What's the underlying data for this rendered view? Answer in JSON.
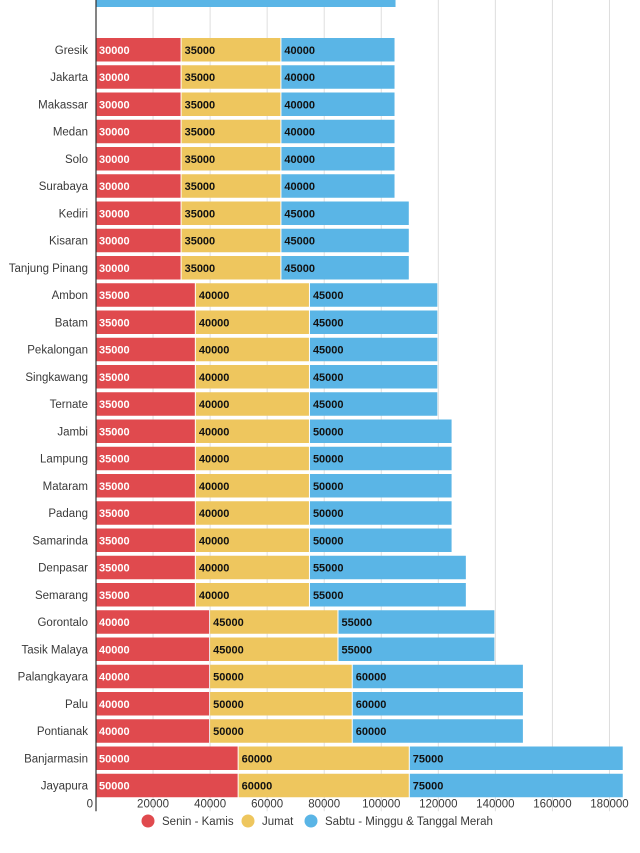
{
  "chart_data": {
    "type": "stacked-bar-horizontal",
    "title": "",
    "xlabel": "",
    "ylabel": "",
    "xlim": [
      0,
      190000
    ],
    "xticks": [
      0,
      20000,
      40000,
      60000,
      80000,
      100000,
      120000,
      140000,
      160000,
      180000
    ],
    "grid": true,
    "legend_position": "bottom",
    "partial_top_category_visible": true,
    "categories": [
      "Gresik",
      "Jakarta",
      "Makassar",
      "Medan",
      "Solo",
      "Surabaya",
      "Kediri",
      "Kisaran",
      "Tanjung Pinang",
      "Ambon",
      "Batam",
      "Pekalongan",
      "Singkawang",
      "Ternate",
      "Jambi",
      "Lampung",
      "Mataram",
      "Padang",
      "Samarinda",
      "Denpasar",
      "Semarang",
      "Gorontalo",
      "Tasik Malaya",
      "Palangkayara",
      "Palu",
      "Pontianak",
      "Banjarmasin",
      "Jayapura"
    ],
    "series": [
      {
        "name": "Senin - Kamis",
        "color": "#e04a4e",
        "label_color": "#ffffff",
        "values": [
          30000,
          30000,
          30000,
          30000,
          30000,
          30000,
          30000,
          30000,
          30000,
          35000,
          35000,
          35000,
          35000,
          35000,
          35000,
          35000,
          35000,
          35000,
          35000,
          35000,
          35000,
          40000,
          40000,
          40000,
          40000,
          40000,
          50000,
          50000
        ]
      },
      {
        "name": "Jumat",
        "color": "#eec65e",
        "label_color": "#111111",
        "values": [
          35000,
          35000,
          35000,
          35000,
          35000,
          35000,
          35000,
          35000,
          35000,
          40000,
          40000,
          40000,
          40000,
          40000,
          40000,
          40000,
          40000,
          40000,
          40000,
          40000,
          40000,
          45000,
          45000,
          50000,
          50000,
          50000,
          60000,
          60000
        ]
      },
      {
        "name": "Sabtu - Minggu & Tanggal Merah",
        "color": "#5ab5e6",
        "label_color": "#111111",
        "values": [
          40000,
          40000,
          40000,
          40000,
          40000,
          40000,
          45000,
          45000,
          45000,
          45000,
          45000,
          45000,
          45000,
          45000,
          50000,
          50000,
          50000,
          50000,
          50000,
          55000,
          55000,
          55000,
          55000,
          60000,
          60000,
          60000,
          75000,
          75000
        ]
      }
    ]
  }
}
